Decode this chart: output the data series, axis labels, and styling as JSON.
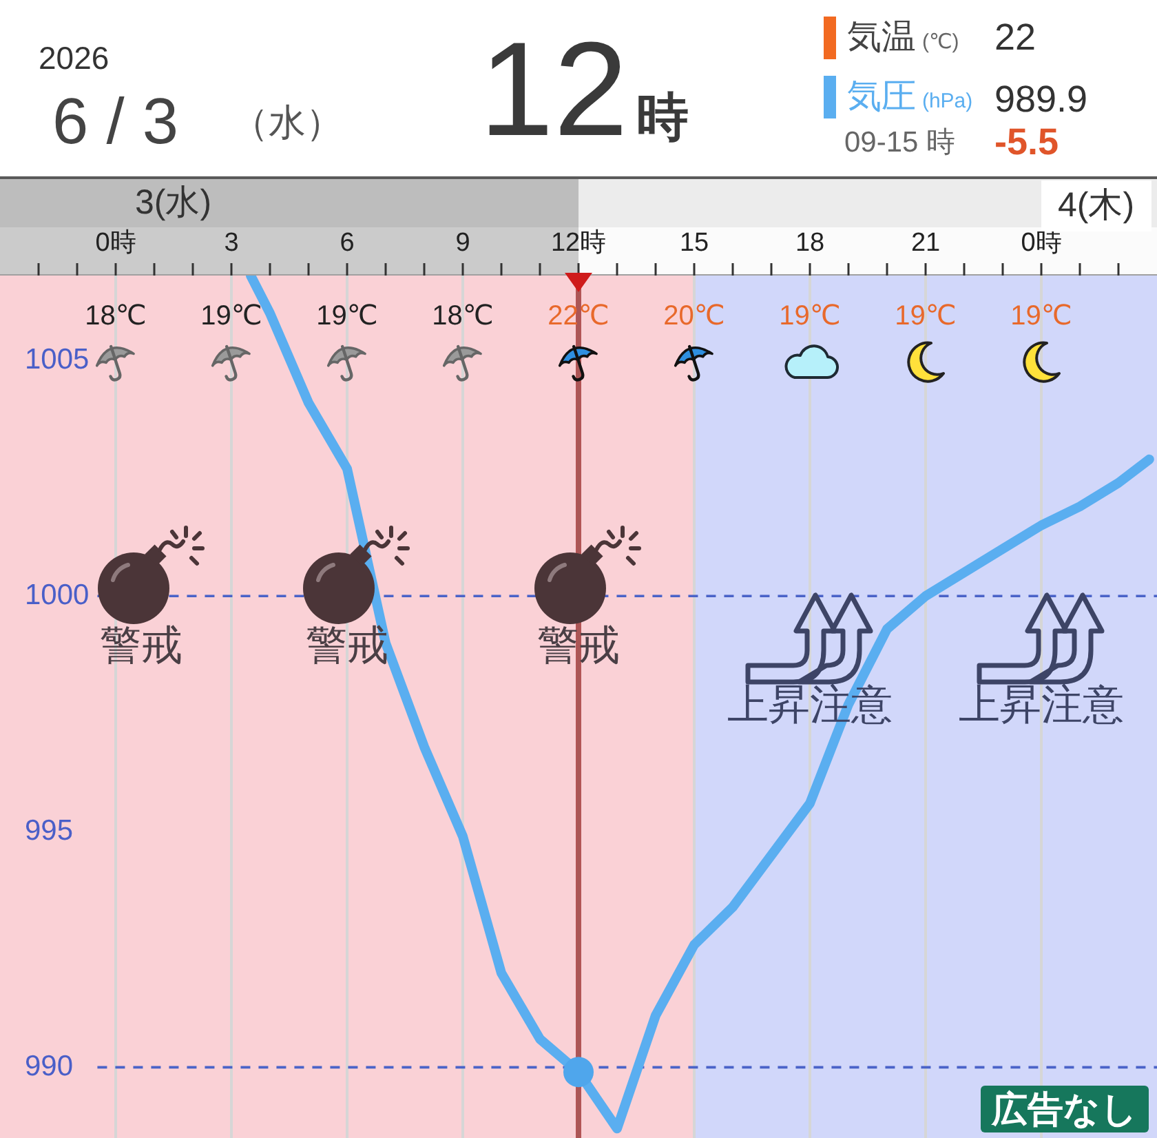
{
  "chart_data": {
    "type": "line",
    "title": "12時",
    "xlim": [
      "2026-06-02T21:00",
      "2026-06-04T03:00"
    ],
    "xticks": [
      {
        "value": "2026-06-02T22:00",
        "label": null
      },
      {
        "value": "2026-06-02T23:00",
        "label": null
      },
      {
        "value": "2026-06-03T00:00",
        "label": "0時"
      },
      {
        "value": "2026-06-03T01:00",
        "label": null
      },
      {
        "value": "2026-06-03T02:00",
        "label": null
      },
      {
        "value": "2026-06-03T03:00",
        "label": "3"
      },
      {
        "value": "2026-06-03T04:00",
        "label": null
      },
      {
        "value": "2026-06-03T05:00",
        "label": null
      },
      {
        "value": "2026-06-03T06:00",
        "label": "6"
      },
      {
        "value": "2026-06-03T07:00",
        "label": null
      },
      {
        "value": "2026-06-03T08:00",
        "label": null
      },
      {
        "value": "2026-06-03T09:00",
        "label": "9"
      },
      {
        "value": "2026-06-03T10:00",
        "label": null
      },
      {
        "value": "2026-06-03T11:00",
        "label": null
      },
      {
        "value": "2026-06-03T12:00",
        "label": "12時"
      },
      {
        "value": "2026-06-03T13:00",
        "label": null
      },
      {
        "value": "2026-06-03T14:00",
        "label": null
      },
      {
        "value": "2026-06-03T15:00",
        "label": "15"
      },
      {
        "value": "2026-06-03T16:00",
        "label": null
      },
      {
        "value": "2026-06-03T17:00",
        "label": null
      },
      {
        "value": "2026-06-03T18:00",
        "label": "18"
      },
      {
        "value": "2026-06-03T19:00",
        "label": null
      },
      {
        "value": "2026-06-03T20:00",
        "label": null
      },
      {
        "value": "2026-06-03T21:00",
        "label": "21"
      },
      {
        "value": "2026-06-03T22:00",
        "label": null
      },
      {
        "value": "2026-06-03T23:00",
        "label": null
      },
      {
        "value": "2026-06-04T00:00",
        "label": "0時"
      },
      {
        "value": "2026-06-04T01:00",
        "label": null
      },
      {
        "value": "2026-06-04T02:00",
        "label": null
      }
    ],
    "x2lim": [
      "2026-06-02T21:00",
      "2026-06-04T03:00"
    ],
    "x2ticks": [
      {
        "value": "2026-06-03T00:00",
        "label": "18℃"
      },
      {
        "value": "2026-06-03T03:00",
        "label": "19℃"
      },
      {
        "value": "2026-06-03T06:00",
        "label": "19℃"
      },
      {
        "value": "2026-06-03T09:00",
        "label": "18℃"
      },
      {
        "value": "2026-06-03T12:00",
        "label": "22℃"
      },
      {
        "value": "2026-06-03T15:00",
        "label": "20℃"
      },
      {
        "value": "2026-06-03T18:00",
        "label": "19℃"
      },
      {
        "value": "2026-06-03T21:00",
        "label": "19℃"
      },
      {
        "value": "2026-06-04T00:00",
        "label": "19℃"
      }
    ],
    "ylim": [
      988.5,
      1006.8
    ],
    "yticks": [
      990,
      995,
      1000,
      1005
    ],
    "grid": "x",
    "legend": "top right",
    "marker": "none",
    "series": [
      {
        "name": "気圧 (hPa)",
        "type": "line",
        "color": "#5aaef0",
        "x": [
          "2026-06-03T03:30",
          "2026-06-03T04:00",
          "2026-06-03T05:00",
          "2026-06-03T06:00",
          "2026-06-03T07:00",
          "2026-06-03T08:00",
          "2026-06-03T09:00",
          "2026-06-03T10:00",
          "2026-06-03T11:00",
          "2026-06-03T12:00",
          "2026-06-03T13:00",
          "2026-06-03T14:00",
          "2026-06-03T15:00",
          "2026-06-03T16:00",
          "2026-06-03T17:00",
          "2026-06-03T18:00",
          "2026-06-03T19:00",
          "2026-06-03T20:00",
          "2026-06-03T21:00",
          "2026-06-03T22:00",
          "2026-06-03T23:00",
          "2026-06-04T00:00",
          "2026-06-04T01:00",
          "2026-06-04T02:00",
          "2026-06-04T02:48"
        ],
        "values": [
          1006.8,
          1006.0,
          1004.1,
          1002.7,
          999.0,
          996.8,
          994.9,
          992.0,
          990.6,
          989.9,
          988.7,
          991.1,
          992.6,
          993.4,
          994.5,
          995.6,
          997.7,
          999.3,
          1000.0,
          1000.5,
          1001.0,
          1001.5,
          1001.9,
          1002.4,
          1002.9
        ]
      },
      {
        "type": "scatter",
        "color": "#4fa6ec",
        "marker": "circle",
        "x": [
          "2026-06-03T12:00"
        ],
        "values": [
          989.9
        ]
      }
    ],
    "ref_lines": [
      {
        "axis": "y",
        "value": 1000,
        "color": "#4a63c8",
        "line_style": "dashed"
      },
      {
        "axis": "y",
        "value": 990,
        "color": "#4a63c8",
        "line_style": "dashed"
      },
      {
        "axis": "x",
        "value": "2026-06-03T12:00",
        "color": "#9b2b2b"
      }
    ],
    "bands": [
      {
        "axis": "x",
        "from": "2026-06-02T21:00",
        "to": "2026-06-03T03:00",
        "label": "警戒",
        "color": "#f07f8c"
      },
      {
        "axis": "x",
        "from": "2026-06-03T03:00",
        "to": "2026-06-03T09:00",
        "label": "警戒",
        "color": "#f07f8c"
      },
      {
        "axis": "x",
        "from": "2026-06-03T09:00",
        "to": "2026-06-03T15:00",
        "label": "警戒",
        "color": "#f07f8c"
      },
      {
        "axis": "x",
        "from": "2026-06-03T15:00",
        "to": "2026-06-03T21:00",
        "label": "上昇注意",
        "color": "#7f8ff0"
      },
      {
        "axis": "x",
        "from": "2026-06-03T21:00",
        "to": "2026-06-04T03:00",
        "label": "上昇注意",
        "color": "#7f8ff0"
      }
    ],
    "annotations": [
      "2026",
      "6 / 3",
      "（水）",
      "気温 (℃)",
      "22",
      "989.9",
      "09-15 時",
      "-5.5",
      "3(水)",
      "4(木)",
      "広告なし"
    ]
  }
}
